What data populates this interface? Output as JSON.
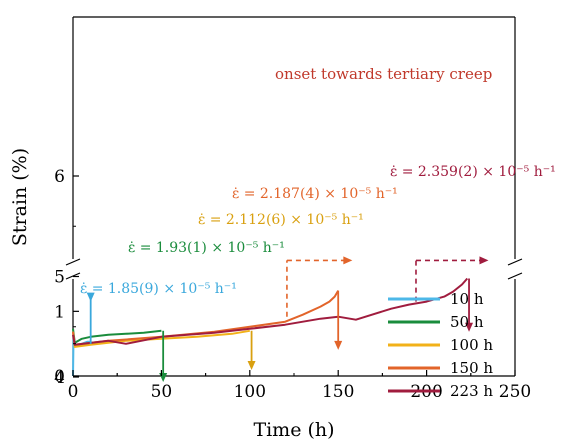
{
  "chart_data": {
    "type": "line",
    "xlabel": "Time (h)",
    "ylabel": "Strain (%)",
    "xlim": [
      0,
      250
    ],
    "ylim_lower": [
      0,
      1.5
    ],
    "ylim_upper": [
      4,
      6
    ],
    "axis_break": "between 1.5 and 4",
    "x_ticks": [
      "0",
      "50",
      "100",
      "150",
      "200",
      "250"
    ],
    "y_ticks_upper": [
      "4",
      "5",
      "6"
    ],
    "y_ticks_lower": [
      "0",
      "1"
    ],
    "grid": false,
    "legend_position": "lower-right",
    "series": [
      {
        "name": "10 h",
        "color": "#4db8e8",
        "x": [
          0,
          0.3,
          1,
          3,
          5,
          8,
          10
        ],
        "y": [
          0,
          4.38,
          4.33,
          4.31,
          4.33,
          4.35,
          4.35
        ]
      },
      {
        "name": "50 h",
        "color": "#1a8c3c",
        "x": [
          0,
          1,
          5,
          10,
          20,
          30,
          40,
          45,
          50
        ],
        "y": [
          4.48,
          4.34,
          4.38,
          4.4,
          4.42,
          4.43,
          4.44,
          4.45,
          4.46
        ]
      },
      {
        "name": "100 h",
        "color": "#f2b118",
        "x": [
          0,
          1,
          10,
          20,
          30,
          50,
          70,
          90,
          100
        ],
        "y": [
          4.45,
          4.3,
          4.32,
          4.34,
          4.36,
          4.38,
          4.4,
          4.43,
          4.46
        ]
      },
      {
        "name": "150 h",
        "color": "#e2642a",
        "x": [
          0,
          1,
          20,
          50,
          80,
          100,
          120,
          130,
          140,
          145,
          148,
          150
        ],
        "y": [
          4.45,
          4.32,
          4.36,
          4.4,
          4.45,
          4.5,
          4.55,
          4.62,
          4.7,
          4.75,
          4.8,
          4.86
        ]
      },
      {
        "name": "223 h",
        "color": "#a01c3e",
        "x": [
          0,
          1,
          20,
          30,
          50,
          80,
          100,
          120,
          140,
          150,
          160,
          180,
          190,
          200,
          210,
          215,
          220,
          223
        ],
        "y": [
          4.42,
          4.32,
          4.36,
          4.33,
          4.4,
          4.44,
          4.48,
          4.52,
          4.58,
          4.6,
          4.57,
          4.68,
          4.72,
          4.75,
          4.8,
          4.85,
          4.92,
          4.98
        ]
      }
    ],
    "rate_annotations": [
      {
        "text": "ε̇ = 1.85(9) × 10⁻⁵ h⁻¹",
        "color": "#3aa8dc",
        "arrow_x": 10,
        "arrow_from_y": 4.33,
        "arrow_to_y": 1.15
      },
      {
        "text": "ε̇ = 1.93(1) × 10⁻⁵ h⁻¹",
        "color": "#1a8c3c",
        "arrow_x": 51,
        "arrow_from_y": 4.46,
        "arrow_to_y": 3.95
      },
      {
        "text": "ε̇ = 2.112(6) × 10⁻⁵ h⁻¹",
        "color": "#d9a010",
        "arrow_x": 101,
        "arrow_from_y": 4.46,
        "arrow_to_y": 4.07
      },
      {
        "text": "ε̇ = 2.187(4) × 10⁻⁵ h⁻¹",
        "color": "#e2642a",
        "arrow_x": 150,
        "arrow_from_y": 4.86,
        "arrow_to_y": 4.27
      },
      {
        "text": "ε̇ = 2.359(2) × 10⁻⁵ h⁻¹",
        "color": "#a01c3e",
        "arrow_x": 224,
        "arrow_from_y": 4.98,
        "arrow_to_y": 4.45
      }
    ],
    "onset_annotation": {
      "text": "onset towards tertiary creep",
      "color": "#c0392b",
      "markers": [
        {
          "x": 121,
          "y_from": 4.6,
          "y_to": 5.16,
          "x_to": 158,
          "color": "#e2642a"
        },
        {
          "x": 194,
          "y_from": 4.75,
          "y_to": 5.16,
          "x_to": 235,
          "color": "#a01c3e"
        }
      ]
    }
  }
}
